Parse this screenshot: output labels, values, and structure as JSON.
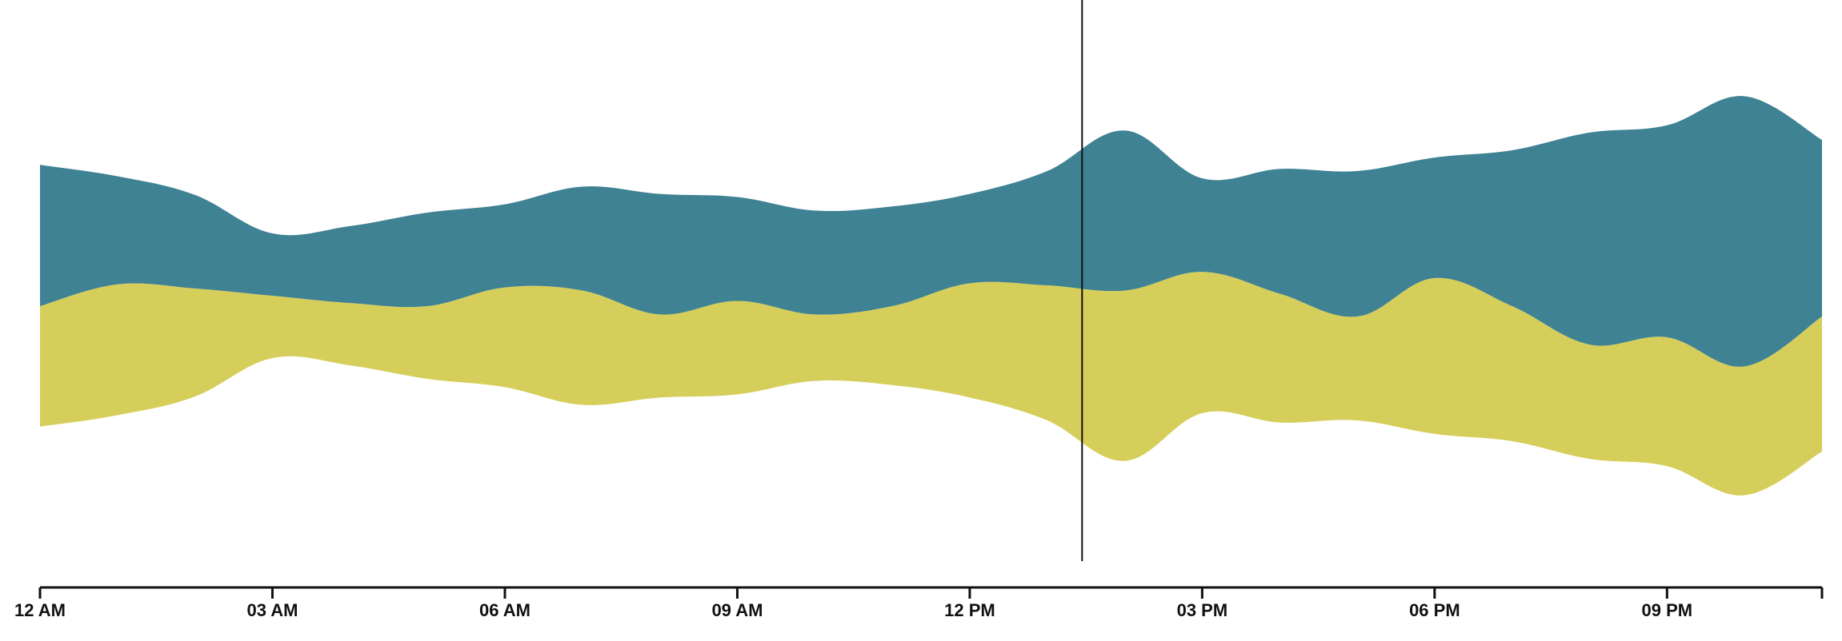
{
  "chart_data": {
    "type": "area",
    "subtype": "streamgraph",
    "title": "",
    "xlabel": "",
    "ylabel": "",
    "x_ticks": [
      "12 AM",
      "03 AM",
      "06 AM",
      "09 AM",
      "12 PM",
      "03 PM",
      "06 PM",
      "09 PM"
    ],
    "x_hours": [
      0,
      1,
      2,
      3,
      4,
      5,
      6,
      7,
      8,
      9,
      10,
      11,
      12,
      13,
      14,
      15,
      16,
      17,
      18,
      19,
      20,
      21,
      22,
      23
    ],
    "xlim": [
      0,
      23
    ],
    "series": [
      {
        "color": "#d6ce5a",
        "values": [
          58,
          63,
          52,
          30,
          30,
          35,
          48,
          55,
          40,
          45,
          32,
          38,
          55,
          65,
          82,
          68,
          62,
          50,
          75,
          65,
          55,
          62,
          62,
          65
        ]
      },
      {
        "color": "#3f8294",
        "values": [
          68,
          52,
          45,
          30,
          37,
          45,
          40,
          50,
          58,
          50,
          50,
          48,
          43,
          55,
          77,
          45,
          60,
          70,
          58,
          75,
          102,
          102,
          130,
          85
        ]
      }
    ],
    "cursor_hour": 13.45,
    "grid": false,
    "legend": "none"
  }
}
